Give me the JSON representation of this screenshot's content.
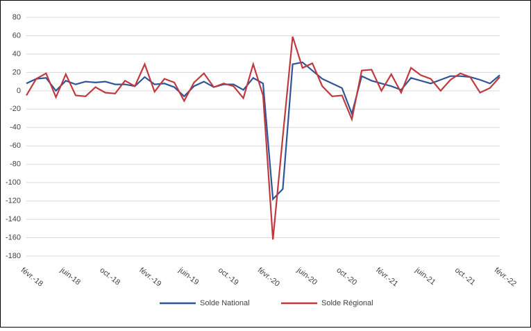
{
  "chart_data": {
    "type": "line",
    "categories": [
      "févr.-18",
      null,
      null,
      null,
      "juin-18",
      null,
      null,
      null,
      "oct.-18",
      null,
      null,
      null,
      "févr.-19",
      null,
      null,
      null,
      "juin-19",
      null,
      null,
      null,
      "oct.-19",
      null,
      null,
      null,
      "févr.-20",
      null,
      null,
      null,
      "juin-20",
      null,
      null,
      null,
      "oct.-20",
      null,
      null,
      null,
      "févr.-21",
      null,
      null,
      null,
      "juin-21",
      null,
      null,
      null,
      "oct.-21",
      null,
      null,
      null,
      "févr.-22"
    ],
    "series": [
      {
        "name": "Solde National",
        "color": "#2e5597",
        "values": [
          8,
          13,
          14,
          0,
          11,
          7,
          10,
          9,
          10,
          7,
          7,
          5,
          15,
          7,
          8,
          4,
          -6,
          5,
          10,
          4,
          7,
          7,
          1,
          14,
          8,
          -118,
          -107,
          29,
          31,
          22,
          13,
          8,
          3,
          -25,
          16,
          11,
          8,
          5,
          1,
          14,
          11,
          8,
          12,
          16,
          16,
          15,
          12,
          8,
          17
        ]
      },
      {
        "name": "Solde Régional",
        "color": "#c0393f",
        "values": [
          -5,
          13,
          19,
          -7,
          18,
          -5,
          -6,
          4,
          -2,
          -3,
          11,
          5,
          29,
          -1,
          13,
          9,
          -11,
          9,
          19,
          4,
          8,
          5,
          -8,
          29,
          -5,
          -162,
          -50,
          59,
          25,
          30,
          5,
          -6,
          -5,
          -31,
          22,
          23,
          0,
          18,
          -2,
          25,
          17,
          13,
          0,
          12,
          19,
          15,
          -2,
          3,
          15
        ]
      }
    ],
    "ylim": [
      -180,
      80
    ],
    "yticks": [
      -180,
      -160,
      -140,
      -120,
      -100,
      -80,
      -60,
      -40,
      -20,
      0,
      20,
      40,
      60,
      80
    ],
    "grid": true,
    "legend": "bottom"
  }
}
